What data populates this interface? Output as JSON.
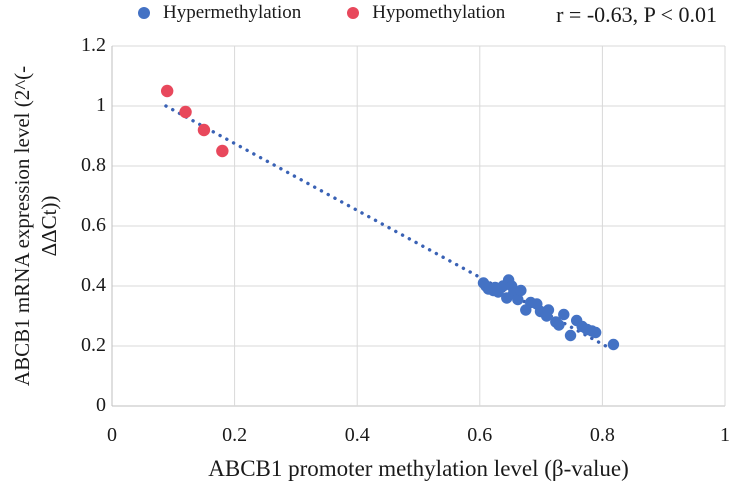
{
  "figure": {
    "annotation": "r = -0.63, P < 0.01"
  },
  "legend": {
    "items": [
      {
        "label": "Hypermethylation",
        "color": "#4472C4"
      },
      {
        "label": "Hypomethylation",
        "color": "#E8485C"
      }
    ]
  },
  "chart_data": {
    "type": "scatter",
    "title": "",
    "xlabel": "ABCB1 promoter methylation level (β-value)",
    "ylabel_line1": "ABCB1 mRNA expression level (2^(-",
    "ylabel_line2": "ΔΔCt))",
    "xlim": [
      0,
      1
    ],
    "ylim": [
      0,
      1.2
    ],
    "x_ticks": [
      0,
      0.2,
      0.4,
      0.6,
      0.8,
      1
    ],
    "x_tick_labels": [
      "0",
      "0.2",
      "0.4",
      "0.6",
      "0.8",
      "1"
    ],
    "y_ticks": [
      0,
      0.2,
      0.4,
      0.6,
      0.8,
      1,
      1.2
    ],
    "y_tick_labels": [
      "0",
      "0.2",
      "0.4",
      "0.6",
      "0.8",
      "1",
      "1.2"
    ],
    "grid": true,
    "grid_color": "#D9D9D9",
    "axis_color": "#BFBFBF",
    "legend_position": "top",
    "annotation": "r = -0.63, P < 0.01",
    "correlation": {
      "r": -0.63,
      "p": "< 0.01"
    },
    "series": [
      {
        "name": "Hypermethylation",
        "color": "#4472C4",
        "marker_radius": 5.7,
        "points": [
          [
            0.606,
            0.41
          ],
          [
            0.61,
            0.4
          ],
          [
            0.614,
            0.39
          ],
          [
            0.622,
            0.385
          ],
          [
            0.625,
            0.395
          ],
          [
            0.63,
            0.38
          ],
          [
            0.638,
            0.4
          ],
          [
            0.644,
            0.36
          ],
          [
            0.647,
            0.42
          ],
          [
            0.652,
            0.4
          ],
          [
            0.655,
            0.375
          ],
          [
            0.662,
            0.355
          ],
          [
            0.667,
            0.385
          ],
          [
            0.675,
            0.32
          ],
          [
            0.683,
            0.345
          ],
          [
            0.693,
            0.34
          ],
          [
            0.699,
            0.315
          ],
          [
            0.709,
            0.3
          ],
          [
            0.712,
            0.32
          ],
          [
            0.724,
            0.28
          ],
          [
            0.729,
            0.27
          ],
          [
            0.737,
            0.305
          ],
          [
            0.748,
            0.235
          ],
          [
            0.758,
            0.285
          ],
          [
            0.767,
            0.265
          ],
          [
            0.775,
            0.255
          ],
          [
            0.783,
            0.25
          ],
          [
            0.789,
            0.245
          ],
          [
            0.818,
            0.205
          ]
        ]
      },
      {
        "name": "Hypomethylation",
        "color": "#E8485C",
        "marker_radius": 6.2,
        "points": [
          [
            0.09,
            1.05
          ],
          [
            0.12,
            0.98
          ],
          [
            0.15,
            0.92
          ],
          [
            0.18,
            0.85
          ]
        ]
      }
    ],
    "trendline": {
      "style": "dotted",
      "color": "#3A62B5",
      "from": [
        0.088,
        1.0
      ],
      "to": [
        0.81,
        0.195
      ]
    }
  }
}
